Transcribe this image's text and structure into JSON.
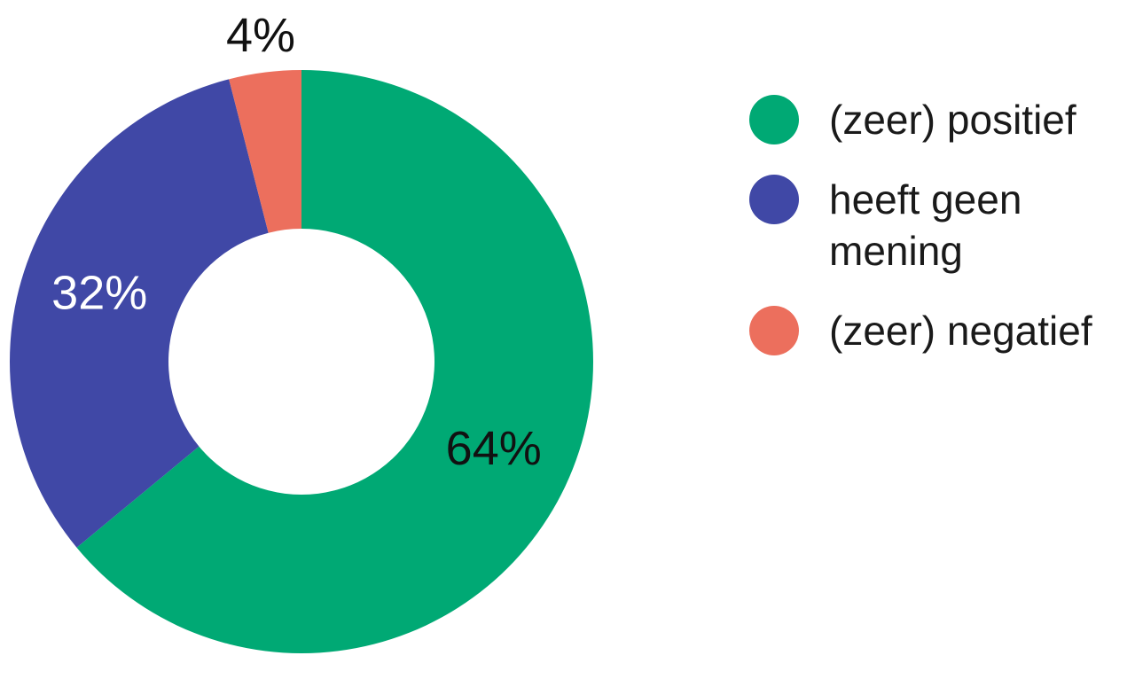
{
  "chart_data": {
    "type": "donut",
    "categories": [
      "(zeer) positief",
      "heeft geen mening",
      "(zeer) negatief"
    ],
    "values": [
      64,
      32,
      4
    ],
    "value_labels": [
      "64%",
      "32%",
      "4%"
    ],
    "colors": [
      "#00a974",
      "#4048a6",
      "#ec6f5d"
    ],
    "label_colors": [
      "#111111",
      "#ffffff",
      "#111111"
    ],
    "legend": "right"
  }
}
